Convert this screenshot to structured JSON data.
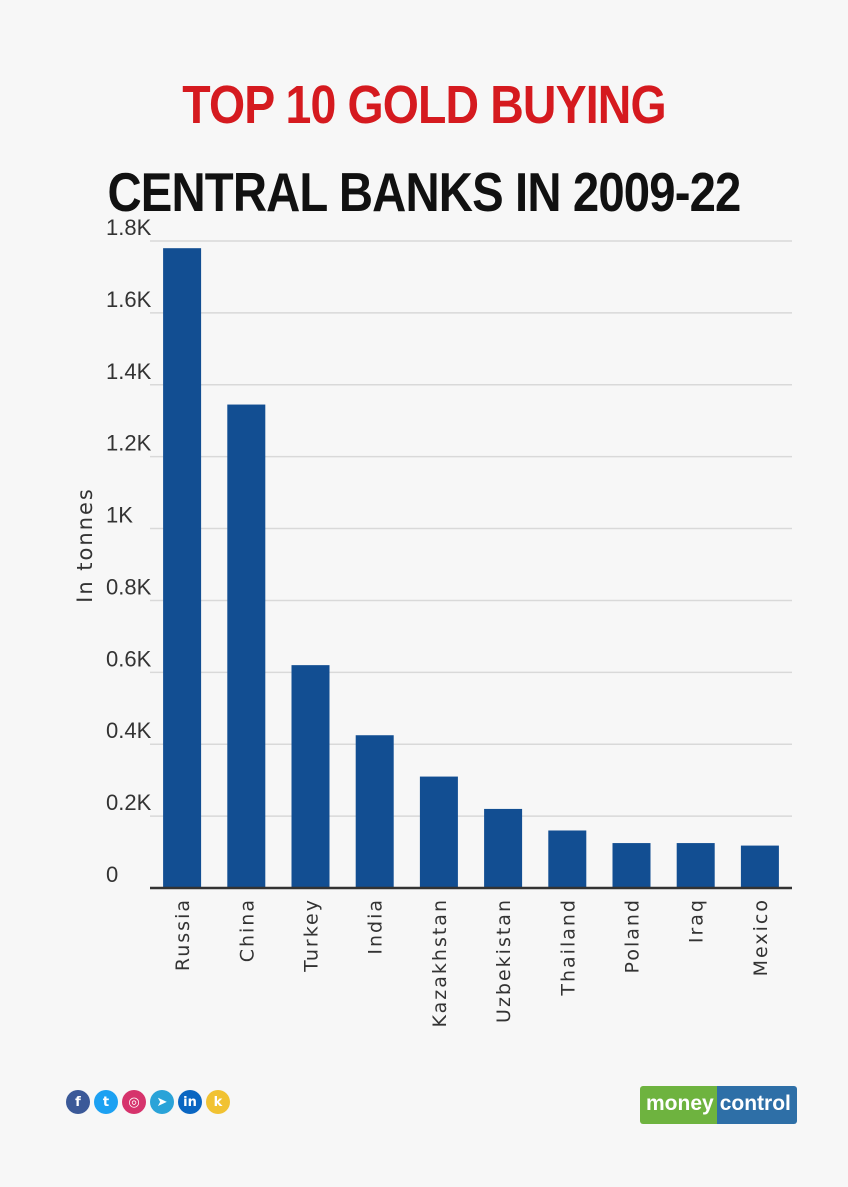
{
  "title": {
    "line1": "TOP 10 GOLD BUYING",
    "line2": "CENTRAL BANKS IN 2009-22"
  },
  "colors": {
    "title_accent": "#d51a1f",
    "bar": "#124e92",
    "gridline": "#d9d9d9",
    "axis": "#333333"
  },
  "chart_data": {
    "type": "bar",
    "title": "TOP 10 GOLD BUYING CENTRAL BANKS IN 2009-22",
    "xlabel": "",
    "ylabel": "In tonnes",
    "ylim": [
      0,
      1800
    ],
    "yticks": [
      {
        "value": 0,
        "label": "0"
      },
      {
        "value": 200,
        "label": "0.2K"
      },
      {
        "value": 400,
        "label": "0.4K"
      },
      {
        "value": 600,
        "label": "0.6K"
      },
      {
        "value": 800,
        "label": "0.8K"
      },
      {
        "value": 1000,
        "label": "1K"
      },
      {
        "value": 1200,
        "label": "1.2K"
      },
      {
        "value": 1400,
        "label": "1.4K"
      },
      {
        "value": 1600,
        "label": "1.6K"
      },
      {
        "value": 1800,
        "label": "1.8K"
      }
    ],
    "grid": true,
    "legend": "none",
    "categories": [
      "Russia",
      "China",
      "Turkey",
      "India",
      "Kazakhstan",
      "Uzbekistan",
      "Thailand",
      "Poland",
      "Iraq",
      "Mexico"
    ],
    "values": [
      1780,
      1345,
      620,
      425,
      310,
      220,
      160,
      125,
      125,
      118
    ]
  },
  "footer": {
    "social_icons": [
      {
        "name": "facebook-icon",
        "glyph": "f",
        "color": "#3b5998"
      },
      {
        "name": "twitter-icon",
        "glyph": "t",
        "color": "#1da1f2"
      },
      {
        "name": "instagram-icon",
        "glyph": "◎",
        "color": "#d6336c"
      },
      {
        "name": "telegram-icon",
        "glyph": "➤",
        "color": "#2aa3d8"
      },
      {
        "name": "linkedin-icon",
        "glyph": "in",
        "color": "#0a66c2"
      },
      {
        "name": "koo-icon",
        "glyph": "k",
        "color": "#f1c232"
      }
    ],
    "brand_part1": "money",
    "brand_part2": "control"
  }
}
